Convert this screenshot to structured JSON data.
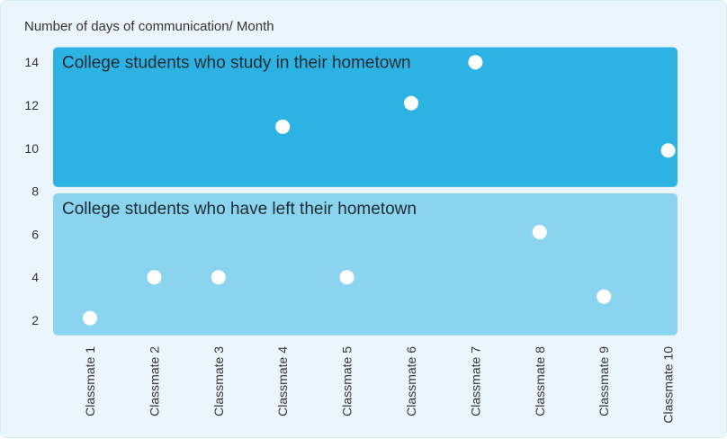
{
  "chart_data": {
    "type": "scatter",
    "title": "",
    "ylabel": "Number of days of communication/ Month",
    "xlabel": "",
    "categories": [
      "Classmate 1",
      "Classmate 2",
      "Classmate 3",
      "Classmate 4",
      "Classmate 5",
      "Classmate 6",
      "Classmate 7",
      "Classmate 8",
      "Classmate 9",
      "Classmate 10"
    ],
    "y_ticks": [
      2,
      4,
      6,
      8,
      10,
      12,
      14
    ],
    "ylim": [
      1,
      15
    ],
    "grid": false,
    "groups": [
      {
        "label": "College students who study in their hometown",
        "color": "#2db3e3",
        "y_range": [
          8.2,
          14.7
        ]
      },
      {
        "label": "College students who have left their hometown",
        "color": "#8bd4ef",
        "y_range": [
          1.3,
          7.9
        ]
      }
    ],
    "series": [
      {
        "name": "College students who study in their hometown",
        "points": [
          {
            "x": "Classmate 4",
            "y": 11
          },
          {
            "x": "Classmate 6",
            "y": 12.1
          },
          {
            "x": "Classmate 7",
            "y": 14
          },
          {
            "x": "Classmate 10",
            "y": 9.9
          }
        ]
      },
      {
        "name": "College students who have left their hometown",
        "points": [
          {
            "x": "Classmate 1",
            "y": 2.1
          },
          {
            "x": "Classmate 2",
            "y": 4
          },
          {
            "x": "Classmate 3",
            "y": 4
          },
          {
            "x": "Classmate 5",
            "y": 4
          },
          {
            "x": "Classmate 8",
            "y": 6.1
          },
          {
            "x": "Classmate 9",
            "y": 3.1
          }
        ]
      }
    ],
    "point_color": "#ffffff"
  }
}
